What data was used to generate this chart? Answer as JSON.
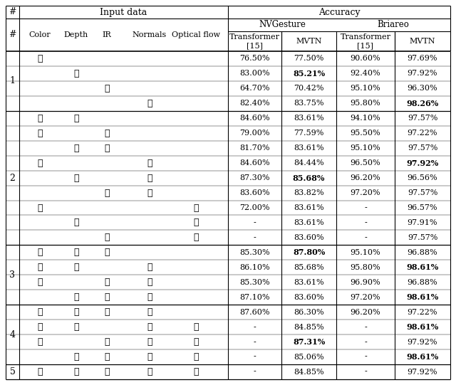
{
  "sections": [
    {
      "num": "1",
      "rows": [
        {
          "checks": [
            1,
            0,
            0,
            0,
            0
          ],
          "nvt": "76.50%",
          "mvtn_nv": "77.50%",
          "brt": "90.60%",
          "mvtn_br": "97.69%",
          "bold_nv": false,
          "bold_br": false
        },
        {
          "checks": [
            0,
            1,
            0,
            0,
            0
          ],
          "nvt": "83.00%",
          "mvtn_nv": "85.21%",
          "brt": "92.40%",
          "mvtn_br": "97.92%",
          "bold_nv": true,
          "bold_br": false
        },
        {
          "checks": [
            0,
            0,
            1,
            0,
            0
          ],
          "nvt": "64.70%",
          "mvtn_nv": "70.42%",
          "brt": "95.10%",
          "mvtn_br": "96.30%",
          "bold_nv": false,
          "bold_br": false
        },
        {
          "checks": [
            0,
            0,
            0,
            1,
            0
          ],
          "nvt": "82.40%",
          "mvtn_nv": "83.75%",
          "brt": "95.80%",
          "mvtn_br": "98.26%",
          "bold_nv": false,
          "bold_br": true
        }
      ]
    },
    {
      "num": "2",
      "rows": [
        {
          "checks": [
            1,
            1,
            0,
            0,
            0
          ],
          "nvt": "84.60%",
          "mvtn_nv": "83.61%",
          "brt": "94.10%",
          "mvtn_br": "97.57%",
          "bold_nv": false,
          "bold_br": false
        },
        {
          "checks": [
            1,
            0,
            1,
            0,
            0
          ],
          "nvt": "79.00%",
          "mvtn_nv": "77.59%",
          "brt": "95.50%",
          "mvtn_br": "97.22%",
          "bold_nv": false,
          "bold_br": false
        },
        {
          "checks": [
            0,
            1,
            1,
            0,
            0
          ],
          "nvt": "81.70%",
          "mvtn_nv": "83.61%",
          "brt": "95.10%",
          "mvtn_br": "97.57%",
          "bold_nv": false,
          "bold_br": false
        },
        {
          "checks": [
            1,
            0,
            0,
            1,
            0
          ],
          "nvt": "84.60%",
          "mvtn_nv": "84.44%",
          "brt": "96.50%",
          "mvtn_br": "97.92%",
          "bold_nv": false,
          "bold_br": true
        },
        {
          "checks": [
            0,
            1,
            0,
            1,
            0
          ],
          "nvt": "87.30%",
          "mvtn_nv": "85.68%",
          "brt": "96.20%",
          "mvtn_br": "96.56%",
          "bold_nv": true,
          "bold_br": false
        },
        {
          "checks": [
            0,
            0,
            1,
            1,
            0
          ],
          "nvt": "83.60%",
          "mvtn_nv": "83.82%",
          "brt": "97.20%",
          "mvtn_br": "97.57%",
          "bold_nv": false,
          "bold_br": false
        },
        {
          "checks": [
            1,
            0,
            0,
            0,
            1
          ],
          "nvt": "72.00%",
          "mvtn_nv": "83.61%",
          "brt": "-",
          "mvtn_br": "96.57%",
          "bold_nv": false,
          "bold_br": false
        },
        {
          "checks": [
            0,
            1,
            0,
            0,
            1
          ],
          "nvt": "-",
          "mvtn_nv": "83.61%",
          "brt": "-",
          "mvtn_br": "97.91%",
          "bold_nv": false,
          "bold_br": false
        },
        {
          "checks": [
            0,
            0,
            1,
            0,
            1
          ],
          "nvt": "-",
          "mvtn_nv": "83.60%",
          "brt": "-",
          "mvtn_br": "97.57%",
          "bold_nv": false,
          "bold_br": false
        }
      ]
    },
    {
      "num": "3",
      "rows": [
        {
          "checks": [
            1,
            1,
            1,
            0,
            0
          ],
          "nvt": "85.30%",
          "mvtn_nv": "87.80%",
          "brt": "95.10%",
          "mvtn_br": "96.88%",
          "bold_nv": true,
          "bold_br": false
        },
        {
          "checks": [
            1,
            1,
            0,
            1,
            0
          ],
          "nvt": "86.10%",
          "mvtn_nv": "85.68%",
          "brt": "95.80%",
          "mvtn_br": "98.61%",
          "bold_nv": false,
          "bold_br": true
        },
        {
          "checks": [
            1,
            0,
            1,
            1,
            0
          ],
          "nvt": "85.30%",
          "mvtn_nv": "83.61%",
          "brt": "96.90%",
          "mvtn_br": "96.88%",
          "bold_nv": false,
          "bold_br": false
        },
        {
          "checks": [
            0,
            1,
            1,
            1,
            0
          ],
          "nvt": "87.10%",
          "mvtn_nv": "83.60%",
          "brt": "97.20%",
          "mvtn_br": "98.61%",
          "bold_nv": false,
          "bold_br": true
        }
      ]
    },
    {
      "num": "4",
      "rows": [
        {
          "checks": [
            1,
            1,
            1,
            1,
            0
          ],
          "nvt": "87.60%",
          "mvtn_nv": "86.30%",
          "brt": "96.20%",
          "mvtn_br": "97.22%",
          "bold_nv": false,
          "bold_br": false
        },
        {
          "checks": [
            1,
            1,
            0,
            1,
            1
          ],
          "nvt": "-",
          "mvtn_nv": "84.85%",
          "brt": "-",
          "mvtn_br": "98.61%",
          "bold_nv": false,
          "bold_br": true
        },
        {
          "checks": [
            1,
            0,
            1,
            1,
            1
          ],
          "nvt": "-",
          "mvtn_nv": "87.31%",
          "brt": "-",
          "mvtn_br": "97.92%",
          "bold_nv": true,
          "bold_br": false
        },
        {
          "checks": [
            0,
            1,
            1,
            1,
            1
          ],
          "nvt": "-",
          "mvtn_nv": "85.06%",
          "brt": "-",
          "mvtn_br": "98.61%",
          "bold_nv": false,
          "bold_br": true
        }
      ]
    },
    {
      "num": "5",
      "rows": [
        {
          "checks": [
            1,
            1,
            1,
            1,
            1
          ],
          "nvt": "-",
          "mvtn_nv": "84.85%",
          "brt": "-",
          "mvtn_br": "97.92%",
          "bold_nv": false,
          "bold_br": false
        }
      ]
    }
  ],
  "col_labels": [
    "Color",
    "Depth",
    "IR",
    "Normals",
    "Optical flow"
  ],
  "bg_color": "#ffffff",
  "line_color": "#000000",
  "check_symbol": "✓"
}
